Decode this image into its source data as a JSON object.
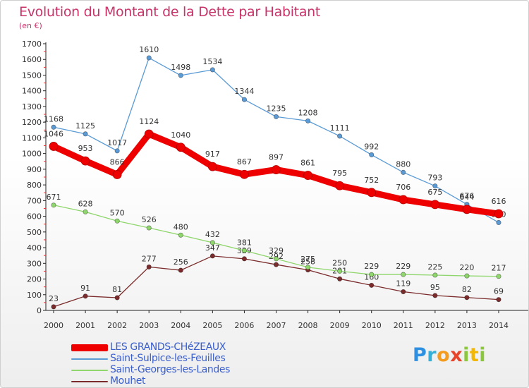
{
  "title": "Evolution du Montant de la Dette par Habitant",
  "unit": "(en €)",
  "logo": {
    "text": "Proxiti",
    "letters": [
      "P",
      "r",
      "o",
      "x",
      "i",
      "t",
      "i"
    ],
    "colors": [
      "#2f8fe0",
      "#35b0d8",
      "#f39c1f",
      "#e8442a",
      "#8cc63f",
      "#f2b705",
      "#8cc63f"
    ]
  },
  "chart_data": {
    "type": "line",
    "title": "Evolution du Montant de la Dette par Habitant",
    "ylabel": "(en €)",
    "xlabel": "",
    "ylim": [
      0,
      1700
    ],
    "yticks": [
      0,
      100,
      200,
      300,
      400,
      500,
      600,
      700,
      800,
      900,
      1000,
      1100,
      1200,
      1300,
      1400,
      1500,
      1600,
      1700
    ],
    "grid": false,
    "legend_position": "bottom-left",
    "x": [
      "2000",
      "2001",
      "2002",
      "2003",
      "2004",
      "2005",
      "2006",
      "2007",
      "2008",
      "2009",
      "2010",
      "2011",
      "2012",
      "2013",
      "2014"
    ],
    "series": [
      {
        "name": "LES GRANDS-CHéZEAUX",
        "color": "#ee0000",
        "values": [
          1046,
          953,
          866,
          1124,
          1040,
          917,
          867,
          897,
          861,
          795,
          752,
          706,
          675,
          644,
          616
        ],
        "labels": [
          "1046",
          "953",
          "866",
          "1124",
          "1040",
          "917",
          "867",
          "897",
          "861",
          "795",
          "752",
          "706",
          "675",
          "644",
          "616"
        ]
      },
      {
        "name": "Saint-Sulpice-les-Feuilles",
        "color": "#5b9bd5",
        "values": [
          1168,
          1125,
          1017,
          1610,
          1498,
          1534,
          1344,
          1235,
          1208,
          1111,
          992,
          880,
          793,
          676,
          560
        ],
        "labels": [
          "1168",
          "1125",
          "1017",
          "1610",
          "1498",
          "1534",
          "1344",
          "1235",
          "1208",
          "1111",
          "992",
          "880",
          "793",
          "676",
          "560"
        ]
      },
      {
        "name": "Saint-Georges-les-Landes",
        "color": "#8fd66d",
        "values": [
          671,
          628,
          570,
          526,
          480,
          432,
          381,
          329,
          275,
          250,
          229,
          229,
          225,
          220,
          217
        ],
        "labels": [
          "671",
          "628",
          "570",
          "526",
          "480",
          "432",
          "381",
          "329",
          "275",
          "250",
          "229",
          "229",
          "225",
          "220",
          "217"
        ]
      },
      {
        "name": "Mouhet",
        "color": "#7b2b2b",
        "values": [
          23,
          91,
          81,
          277,
          256,
          347,
          329,
          292,
          258,
          201,
          160,
          119,
          95,
          82,
          69
        ],
        "labels": [
          "23",
          "91",
          "81",
          "277",
          "256",
          "347",
          "329",
          "292",
          "258",
          "201",
          "160",
          "119",
          "95",
          "82",
          "69"
        ]
      }
    ]
  }
}
